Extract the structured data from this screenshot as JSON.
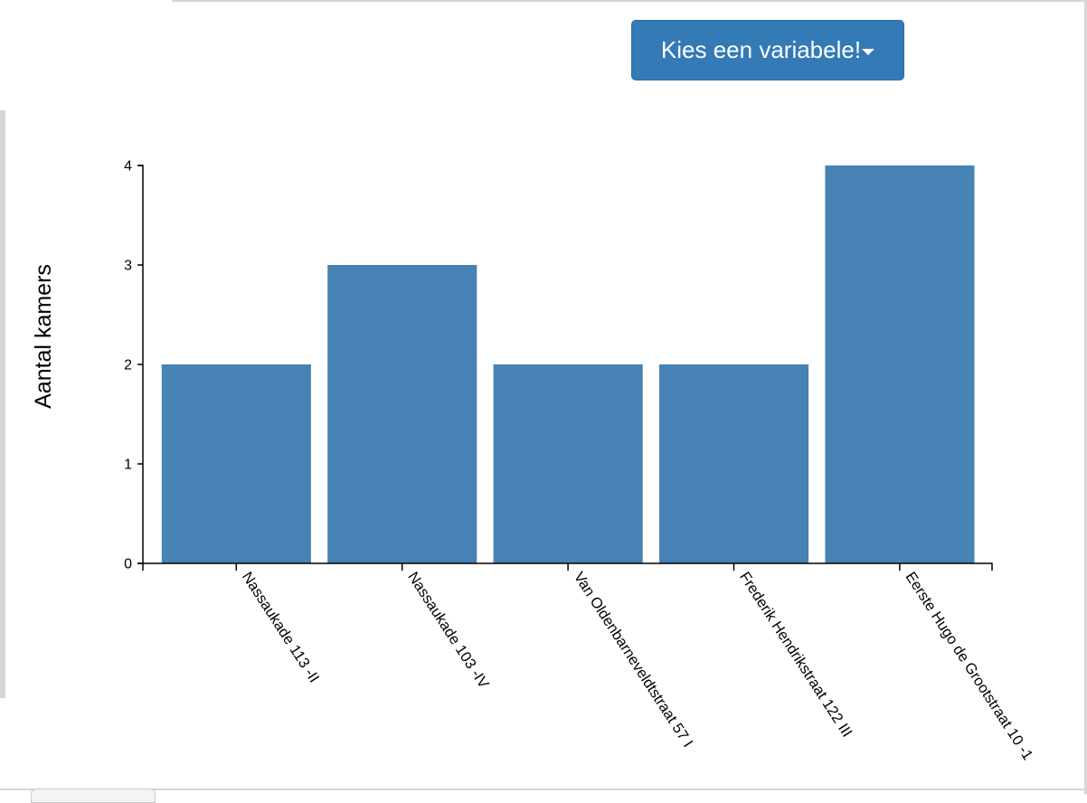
{
  "controls": {
    "dropdown_label": "Kies een variabele!"
  },
  "colors": {
    "bar": "#4682b4",
    "button": "#337ab7"
  },
  "chart_data": {
    "type": "bar",
    "categories": [
      "Nassaukade 113 -II",
      "Nassaukade 103 -IV",
      "Van Oldenbarneveldtstraat 57 I",
      "Frederik Hendrikstraat 122 III",
      "Eerste Hugo de Grootstraat 10 -1"
    ],
    "values": [
      2,
      3,
      2,
      2,
      4
    ],
    "title": "",
    "xlabel": "",
    "ylabel": "Aantal kamers",
    "ylim": [
      0,
      4
    ],
    "yticks": [
      0,
      1,
      2,
      3,
      4
    ],
    "grid": false,
    "legend": "none"
  }
}
